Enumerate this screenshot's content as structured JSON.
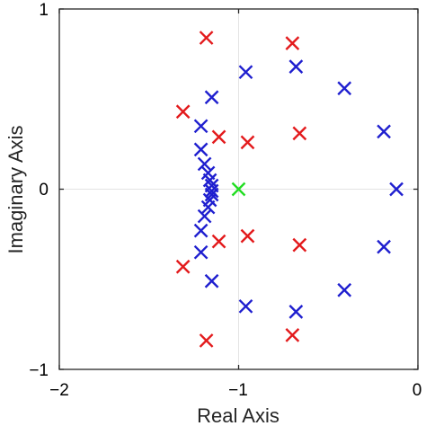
{
  "chart_data": {
    "type": "scatter",
    "marker": "x",
    "xlabel": "Real Axis",
    "ylabel": "Imaginary Axis",
    "xlim": [
      -2,
      0
    ],
    "ylim": [
      -1,
      1
    ],
    "xticks": [
      -2,
      -1,
      0
    ],
    "yticks": [
      -1,
      0,
      1
    ],
    "xtick_labels": [
      "−2",
      "−1",
      "0"
    ],
    "ytick_labels": [
      "−1",
      "0",
      "1"
    ],
    "grid": "zero-lines",
    "series": [
      {
        "color": "#e31a1c",
        "points": [
          [
            -1.18,
            0.84
          ],
          [
            -0.7,
            0.81
          ],
          [
            -1.31,
            0.43
          ],
          [
            -1.11,
            0.29
          ],
          [
            -0.95,
            0.26
          ],
          [
            -0.66,
            0.31
          ],
          [
            -1.18,
            -0.84
          ],
          [
            -0.7,
            -0.81
          ],
          [
            -1.31,
            -0.43
          ],
          [
            -1.11,
            -0.29
          ],
          [
            -0.95,
            -0.26
          ],
          [
            -0.66,
            -0.31
          ]
        ]
      },
      {
        "color": "#1f1fcf",
        "points": [
          [
            -0.96,
            0.65
          ],
          [
            -0.68,
            0.68
          ],
          [
            -1.15,
            0.51
          ],
          [
            -0.41,
            0.56
          ],
          [
            -0.19,
            0.32
          ],
          [
            -0.12,
            0.0
          ],
          [
            -0.19,
            -0.32
          ],
          [
            -0.41,
            -0.56
          ],
          [
            -0.68,
            -0.68
          ],
          [
            -0.96,
            -0.65
          ],
          [
            -1.15,
            -0.51
          ],
          [
            -1.21,
            0.35
          ],
          [
            -1.21,
            0.22
          ],
          [
            -1.19,
            0.14
          ],
          [
            -1.17,
            0.09
          ],
          [
            -1.16,
            0.05
          ],
          [
            -1.15,
            0.02
          ],
          [
            -1.15,
            -0.01
          ],
          [
            -1.15,
            -0.03
          ],
          [
            -1.16,
            -0.06
          ],
          [
            -1.17,
            -0.1
          ],
          [
            -1.19,
            -0.15
          ],
          [
            -1.21,
            -0.23
          ],
          [
            -1.21,
            -0.35
          ]
        ]
      },
      {
        "color": "#22dd22",
        "points": [
          [
            -1.0,
            0.0
          ]
        ]
      }
    ]
  }
}
